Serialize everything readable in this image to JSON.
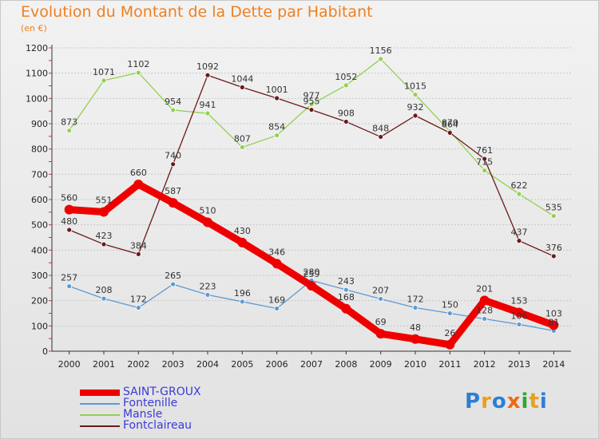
{
  "title": "Evolution du Montant de la Dette par Habitant",
  "subtitle": "(en €)",
  "logo": {
    "text": "Proxiti",
    "colors": [
      "#2a7fd4",
      "#e8a020",
      "#2a7fd4",
      "#f06a10",
      "#2aaa2a",
      "#e8a020",
      "#2a7fd4"
    ]
  },
  "colors": {
    "title": "#f08020",
    "grid": "#c8c8c8",
    "legend_text": "#3a3ad8"
  },
  "chart_data": {
    "type": "line",
    "title": "Evolution du Montant de la Dette par Habitant",
    "ylabel": "(en €)",
    "x": [
      "2000",
      "2001",
      "2002",
      "2003",
      "2004",
      "2005",
      "2006",
      "2007",
      "2008",
      "2009",
      "2010",
      "2011",
      "2012",
      "2013",
      "2014"
    ],
    "ylim": [
      0,
      1200
    ],
    "yticks": [
      0,
      100,
      200,
      300,
      400,
      500,
      600,
      700,
      800,
      900,
      1000,
      1100,
      1200
    ],
    "grid": "horizontal",
    "legend_position": "bottom-left",
    "series": [
      {
        "name": "SAINT-GROUX",
        "color": "#ee0000",
        "values": [
          560,
          551,
          660,
          587,
          510,
          430,
          346,
          259,
          168,
          69,
          48,
          26,
          201,
          153,
          103
        ]
      },
      {
        "name": "Fontenille",
        "color": "#5b9bd5",
        "values": [
          257,
          208,
          172,
          265,
          223,
          196,
          169,
          280,
          243,
          207,
          172,
          150,
          128,
          106,
          81
        ]
      },
      {
        "name": "Mansle",
        "color": "#92d050",
        "values": [
          873,
          1071,
          1102,
          954,
          941,
          807,
          854,
          977,
          1052,
          1156,
          1015,
          870,
          715,
          622,
          535
        ]
      },
      {
        "name": "Fontclaireau",
        "color": "#6b1a1a",
        "values": [
          480,
          423,
          384,
          740,
          1092,
          1044,
          1001,
          955,
          908,
          848,
          932,
          864,
          761,
          437,
          376
        ]
      }
    ]
  }
}
